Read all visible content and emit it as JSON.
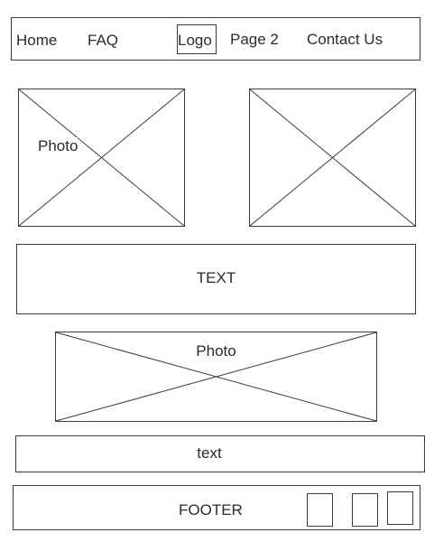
{
  "nav": {
    "items": [
      {
        "label": "Home"
      },
      {
        "label": "FAQ"
      },
      {
        "label": "Logo"
      },
      {
        "label": "Page 2"
      },
      {
        "label": "Contact Us"
      }
    ]
  },
  "photo_left": {
    "label": "Photo"
  },
  "text_block": {
    "label": "TEXT"
  },
  "photo_banner": {
    "label": "Photo"
  },
  "text_bar": {
    "label": "text"
  },
  "footer": {
    "label": "FOOTER"
  }
}
